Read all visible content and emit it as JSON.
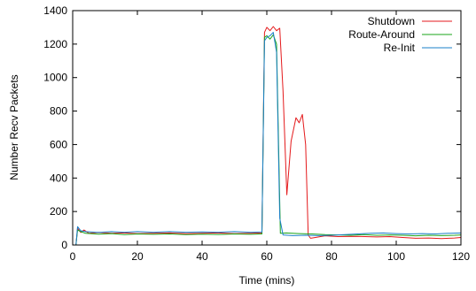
{
  "chart_data": {
    "type": "line",
    "xlabel": "Time (mins)",
    "ylabel": "Number Recv Packets",
    "xlim": [
      0,
      120
    ],
    "ylim": [
      0,
      1400
    ],
    "xticks": [
      0,
      20,
      40,
      60,
      80,
      100,
      120
    ],
    "yticks": [
      0,
      200,
      400,
      600,
      800,
      1000,
      1200,
      1400
    ],
    "legend_position": "top-right",
    "grid": false,
    "series": [
      {
        "name": "Shutdown",
        "color": "#e41a1c",
        "points": [
          [
            0,
            0
          ],
          [
            1,
            0
          ],
          [
            1.5,
            100
          ],
          [
            2.5,
            75
          ],
          [
            3.5,
            90
          ],
          [
            5,
            70
          ],
          [
            8,
            75
          ],
          [
            12,
            70
          ],
          [
            16,
            72
          ],
          [
            20,
            68
          ],
          [
            25,
            70
          ],
          [
            30,
            72
          ],
          [
            35,
            68
          ],
          [
            40,
            70
          ],
          [
            45,
            72
          ],
          [
            50,
            68
          ],
          [
            55,
            70
          ],
          [
            58.5,
            72
          ],
          [
            59.3,
            1270
          ],
          [
            60,
            1300
          ],
          [
            61,
            1280
          ],
          [
            62,
            1305
          ],
          [
            63,
            1280
          ],
          [
            64,
            1295
          ],
          [
            65,
            920
          ],
          [
            66.2,
            300
          ],
          [
            67.5,
            620
          ],
          [
            69,
            760
          ],
          [
            70,
            730
          ],
          [
            71,
            780
          ],
          [
            72,
            600
          ],
          [
            72.8,
            60
          ],
          [
            73.5,
            40
          ],
          [
            75,
            45
          ],
          [
            78,
            55
          ],
          [
            82,
            50
          ],
          [
            88,
            52
          ],
          [
            94,
            48
          ],
          [
            98,
            50
          ],
          [
            102,
            45
          ],
          [
            106,
            40
          ],
          [
            110,
            42
          ],
          [
            114,
            38
          ],
          [
            118,
            42
          ],
          [
            120,
            45
          ]
        ]
      },
      {
        "name": "Route-Around",
        "color": "#1aa41a",
        "points": [
          [
            0,
            0
          ],
          [
            1,
            0
          ],
          [
            1.5,
            90
          ],
          [
            2.5,
            80
          ],
          [
            4,
            70
          ],
          [
            8,
            65
          ],
          [
            12,
            68
          ],
          [
            16,
            62
          ],
          [
            20,
            66
          ],
          [
            25,
            64
          ],
          [
            30,
            66
          ],
          [
            35,
            62
          ],
          [
            40,
            65
          ],
          [
            45,
            63
          ],
          [
            50,
            66
          ],
          [
            55,
            64
          ],
          [
            58.5,
            66
          ],
          [
            59.3,
            1240
          ],
          [
            60,
            1250
          ],
          [
            61,
            1230
          ],
          [
            62,
            1255
          ],
          [
            63,
            1200
          ],
          [
            64.2,
            70
          ],
          [
            66,
            72
          ],
          [
            70,
            68
          ],
          [
            74,
            66
          ],
          [
            78,
            62
          ],
          [
            82,
            60
          ],
          [
            86,
            58
          ],
          [
            90,
            62
          ],
          [
            94,
            58
          ],
          [
            98,
            60
          ],
          [
            102,
            58
          ],
          [
            106,
            55
          ],
          [
            110,
            58
          ],
          [
            114,
            56
          ],
          [
            118,
            58
          ],
          [
            120,
            60
          ]
        ]
      },
      {
        "name": "Re-Init",
        "color": "#1a7fc8",
        "points": [
          [
            0,
            0
          ],
          [
            1,
            0
          ],
          [
            1.5,
            110
          ],
          [
            2.5,
            85
          ],
          [
            4,
            80
          ],
          [
            8,
            75
          ],
          [
            12,
            80
          ],
          [
            16,
            76
          ],
          [
            20,
            80
          ],
          [
            25,
            76
          ],
          [
            30,
            80
          ],
          [
            35,
            76
          ],
          [
            40,
            78
          ],
          [
            45,
            76
          ],
          [
            50,
            80
          ],
          [
            55,
            76
          ],
          [
            58.5,
            78
          ],
          [
            59.3,
            1220
          ],
          [
            60,
            1240
          ],
          [
            61,
            1250
          ],
          [
            62,
            1270
          ],
          [
            63,
            1150
          ],
          [
            64,
            160
          ],
          [
            65,
            60
          ],
          [
            68,
            56
          ],
          [
            72,
            58
          ],
          [
            76,
            56
          ],
          [
            80,
            58
          ],
          [
            84,
            62
          ],
          [
            88,
            66
          ],
          [
            92,
            70
          ],
          [
            96,
            72
          ],
          [
            100,
            68
          ],
          [
            104,
            66
          ],
          [
            108,
            68
          ],
          [
            112,
            66
          ],
          [
            116,
            70
          ],
          [
            120,
            72
          ]
        ]
      }
    ]
  }
}
